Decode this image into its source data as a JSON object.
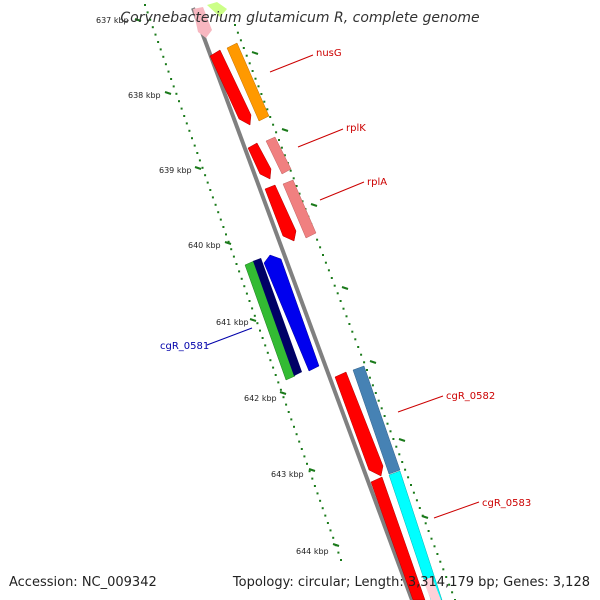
{
  "title": "Corynebacterium glutamicum R, complete genome",
  "footer": {
    "accession": "Accession: NC_009342",
    "summary": "Topology: circular; Length: 3,314,179 bp; Genes: 3,128"
  },
  "ticks": [
    "637 kbp",
    "638 kbp",
    "639 kbp",
    "640 kbp",
    "641 kbp",
    "642 kbp",
    "643 kbp",
    "644 kbp"
  ],
  "gene_labels": [
    {
      "name": "nusG",
      "color": "#cc0000"
    },
    {
      "name": "rplK",
      "color": "#cc0000"
    },
    {
      "name": "rplA",
      "color": "#cc0000"
    },
    {
      "name": "cgR_0581",
      "color": "#0000aa"
    },
    {
      "name": "cgR_0582",
      "color": "#cc0000"
    },
    {
      "name": "cgR_0583",
      "color": "#cc0000"
    }
  ],
  "colors": {
    "backbone": "#808080",
    "tick_dots": "#1a7a1a",
    "cds_red": "#ff0000",
    "orange": "#ff9900",
    "salmon": "#f08080",
    "blue": "#0000ee",
    "navy": "#000066",
    "green": "#33bb33",
    "steel_blue": "#4682b4",
    "cyan": "#00ffff"
  }
}
